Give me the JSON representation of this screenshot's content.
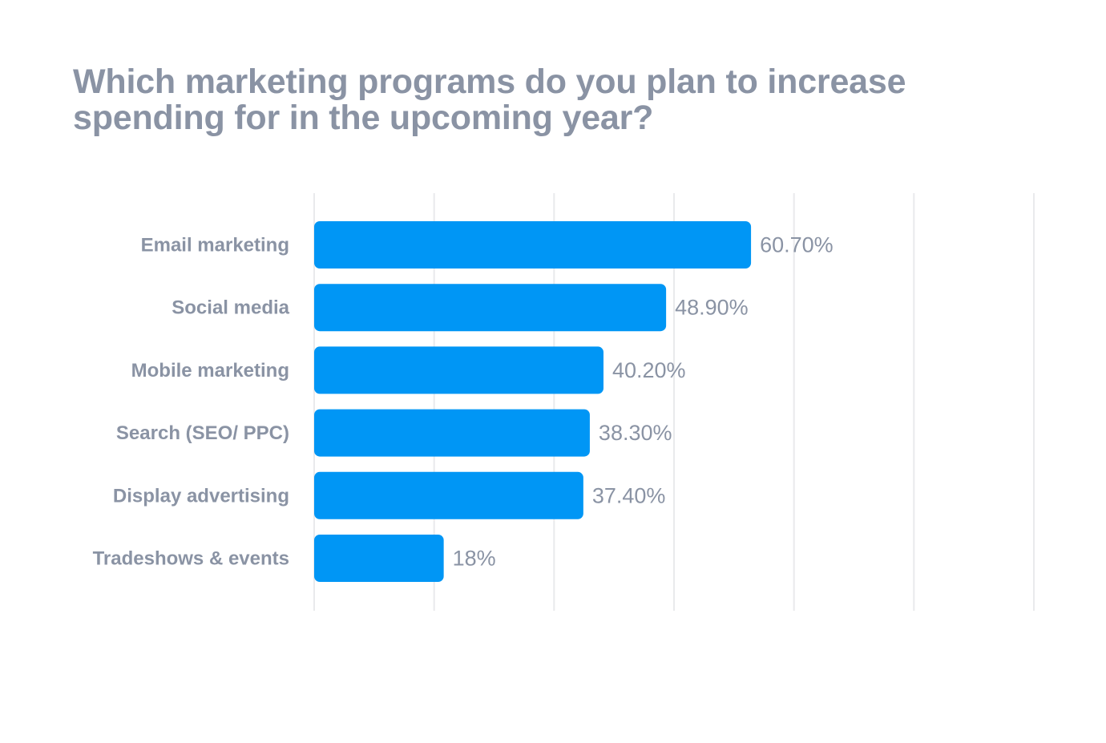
{
  "chart_data": {
    "type": "bar",
    "orientation": "horizontal",
    "title": "Which marketing programs do you plan to increase spending for in the upcoming year?",
    "categories": [
      "Email marketing",
      "Social media",
      "Mobile marketing",
      "Search (SEO/ PPC)",
      "Display advertising",
      "Tradeshows & events"
    ],
    "values": [
      60.7,
      48.9,
      40.2,
      38.3,
      37.4,
      18
    ],
    "value_labels": [
      "60.70%",
      "48.90%",
      "40.20%",
      "38.30%",
      "37.40%",
      "18%"
    ],
    "xlim": [
      0,
      100
    ],
    "x_gridlines": [
      0,
      16.67,
      33.33,
      50,
      66.67,
      83.33,
      100
    ],
    "grid": true,
    "bar_color": "#0096f5",
    "grid_color": "#e9eaec",
    "text_color": "#8a93a4"
  }
}
